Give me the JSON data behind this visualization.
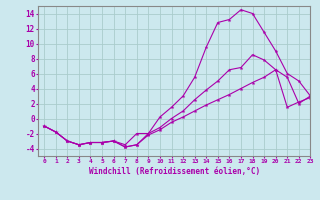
{
  "xlabel": "Windchill (Refroidissement éolien,°C)",
  "background_color": "#cce8ee",
  "grid_color": "#aacccc",
  "line_color": "#aa00aa",
  "xlim": [
    -0.5,
    23
  ],
  "ylim": [
    -5,
    15
  ],
  "xticks": [
    0,
    1,
    2,
    3,
    4,
    5,
    6,
    7,
    8,
    9,
    10,
    11,
    12,
    13,
    14,
    15,
    16,
    17,
    18,
    19,
    20,
    21,
    22,
    23
  ],
  "yticks": [
    -4,
    -2,
    0,
    2,
    4,
    6,
    8,
    10,
    12,
    14
  ],
  "curve1_x": [
    0,
    1,
    2,
    3,
    4,
    5,
    6,
    7,
    8,
    9,
    10,
    11,
    12,
    13,
    14,
    15,
    16,
    17,
    18,
    19,
    20,
    21,
    22,
    23
  ],
  "curve1_y": [
    -1,
    -1.8,
    -3,
    -3.5,
    -3.2,
    -3.2,
    -3.0,
    -3.5,
    -2.0,
    -2.0,
    0.2,
    1.5,
    3.0,
    5.5,
    9.5,
    12.8,
    13.2,
    14.5,
    14.0,
    11.5,
    9.0,
    6.0,
    5.0,
    3.0
  ],
  "curve2_x": [
    0,
    1,
    2,
    3,
    4,
    5,
    6,
    7,
    8,
    9,
    10,
    11,
    12,
    13,
    14,
    15,
    16,
    17,
    18,
    19,
    20,
    21,
    22,
    23
  ],
  "curve2_y": [
    -1,
    -1.8,
    -3,
    -3.5,
    -3.2,
    -3.2,
    -3.0,
    -3.8,
    -3.5,
    -2.0,
    -1.2,
    0.0,
    1.0,
    2.5,
    3.8,
    5.0,
    6.5,
    6.8,
    8.5,
    7.8,
    6.5,
    5.5,
    2.0,
    3.0
  ],
  "curve3_x": [
    0,
    1,
    2,
    3,
    4,
    5,
    6,
    7,
    8,
    9,
    10,
    11,
    12,
    13,
    14,
    15,
    16,
    17,
    18,
    19,
    20,
    21,
    22,
    23
  ],
  "curve3_y": [
    -1,
    -1.8,
    -3,
    -3.5,
    -3.2,
    -3.2,
    -3.0,
    -3.8,
    -3.5,
    -2.2,
    -1.5,
    -0.5,
    0.2,
    1.0,
    1.8,
    2.5,
    3.2,
    4.0,
    4.8,
    5.5,
    6.5,
    1.5,
    2.2,
    2.8
  ]
}
